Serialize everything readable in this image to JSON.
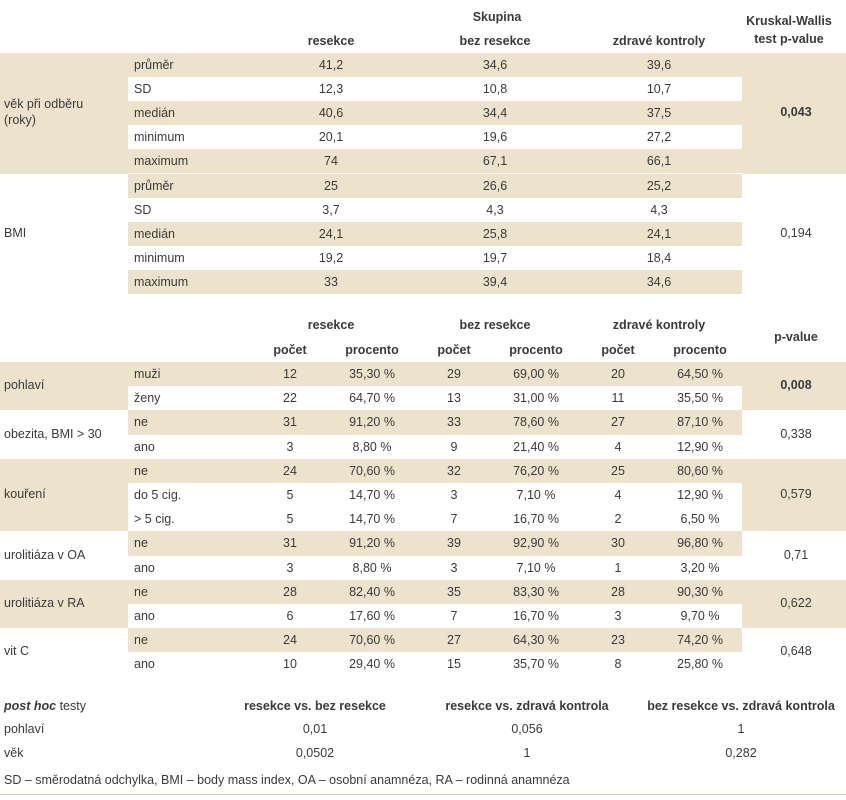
{
  "header1": {
    "skupina": "Skupina",
    "kw_line1": "Kruskal-Wallis",
    "kw_line2": "test p-value",
    "groups": [
      "resekce",
      "bez resekce",
      "zdravé kontroly"
    ]
  },
  "section1": [
    {
      "label": "věk při odběru\n(roky)",
      "p_value": "0,043",
      "p_bold": true,
      "rows": [
        {
          "stat": "průměr",
          "values": [
            "41,2",
            "34,6",
            "39,6"
          ]
        },
        {
          "stat": "SD",
          "values": [
            "12,3",
            "10,8",
            "10,7"
          ]
        },
        {
          "stat": "medián",
          "values": [
            "40,6",
            "34,4",
            "37,5"
          ]
        },
        {
          "stat": "minimum",
          "values": [
            "20,1",
            "19,6",
            "27,2"
          ]
        },
        {
          "stat": "maximum",
          "values": [
            "74",
            "67,1",
            "66,1"
          ]
        }
      ]
    },
    {
      "label": "BMI",
      "p_value": "0,194",
      "p_bold": false,
      "rows": [
        {
          "stat": "průměr",
          "values": [
            "25",
            "26,6",
            "25,2"
          ]
        },
        {
          "stat": "SD",
          "values": [
            "3,7",
            "4,3",
            "4,3"
          ]
        },
        {
          "stat": "medián",
          "values": [
            "24,1",
            "25,8",
            "24,1"
          ]
        },
        {
          "stat": "minimum",
          "values": [
            "19,2",
            "19,7",
            "18,4"
          ]
        },
        {
          "stat": "maximum",
          "values": [
            "33",
            "39,4",
            "34,6"
          ]
        }
      ]
    }
  ],
  "header2": {
    "groups": [
      "resekce",
      "bez resekce",
      "zdravé kontroly"
    ],
    "count_label": "počet",
    "percent_label": "procento",
    "p_label": "p-value"
  },
  "section2": [
    {
      "label": "pohlaví",
      "p_value": "0,008",
      "p_bold": true,
      "rows": [
        {
          "cat": "muži",
          "values": [
            "12",
            "35,30 %",
            "29",
            "69,00 %",
            "20",
            "64,50 %"
          ]
        },
        {
          "cat": "ženy",
          "values": [
            "22",
            "64,70 %",
            "13",
            "31,00 %",
            "11",
            "35,50 %"
          ]
        }
      ]
    },
    {
      "label": "obezita, BMI > 30",
      "p_value": "0,338",
      "p_bold": false,
      "rows": [
        {
          "cat": "ne",
          "values": [
            "31",
            "91,20 %",
            "33",
            "78,60 %",
            "27",
            "87,10 %"
          ]
        },
        {
          "cat": "ano",
          "values": [
            "3",
            "8,80 %",
            "9",
            "21,40 %",
            "4",
            "12,90 %"
          ]
        }
      ]
    },
    {
      "label": "kouření",
      "p_value": "0,579",
      "p_bold": false,
      "rows": [
        {
          "cat": "ne",
          "values": [
            "24",
            "70,60 %",
            "32",
            "76,20 %",
            "25",
            "80,60 %"
          ]
        },
        {
          "cat": "do 5 cig.",
          "values": [
            "5",
            "14,70 %",
            "3",
            "7,10 %",
            "4",
            "12,90 %"
          ]
        },
        {
          "cat": "> 5 cig.",
          "values": [
            "5",
            "14,70 %",
            "7",
            "16,70 %",
            "2",
            "6,50 %"
          ]
        }
      ]
    },
    {
      "label": "urolitiáza v OA",
      "p_value": "0,71",
      "p_bold": false,
      "rows": [
        {
          "cat": "ne",
          "values": [
            "31",
            "91,20 %",
            "39",
            "92,90 %",
            "30",
            "96,80 %"
          ]
        },
        {
          "cat": "ano",
          "values": [
            "3",
            "8,80 %",
            "3",
            "7,10 %",
            "1",
            "3,20 %"
          ]
        }
      ]
    },
    {
      "label": "urolitiáza v RA",
      "p_value": "0,622",
      "p_bold": false,
      "rows": [
        {
          "cat": "ne",
          "values": [
            "28",
            "82,40 %",
            "35",
            "83,30 %",
            "28",
            "90,30 %"
          ]
        },
        {
          "cat": "ano",
          "values": [
            "6",
            "17,60 %",
            "7",
            "16,70 %",
            "3",
            "9,70 %"
          ]
        }
      ]
    },
    {
      "label": "vit C",
      "p_value": "0,648",
      "p_bold": false,
      "rows": [
        {
          "cat": "ne",
          "values": [
            "24",
            "70,60 %",
            "27",
            "64,30 %",
            "23",
            "74,20 %"
          ]
        },
        {
          "cat": "ano",
          "values": [
            "10",
            "29,40 %",
            "15",
            "35,70 %",
            "8",
            "25,80 %"
          ]
        }
      ]
    }
  ],
  "posthoc": {
    "title_italic": "post hoc",
    "title_rest": " testy",
    "columns": [
      "resekce vs. bez resekce",
      "resekce vs. zdravá kontrola",
      "bez resekce vs. zdravá kontrola"
    ],
    "rows": [
      {
        "label": "pohlaví",
        "values": [
          "0,01",
          "0,056",
          "1"
        ]
      },
      {
        "label": "věk",
        "values": [
          "0,0502",
          "1",
          "0,282"
        ]
      }
    ]
  },
  "footnote": "SD – směrodatná odchylka, BMI – body mass index, OA – osobní anamnéza, RA – rodinná anamnéza"
}
